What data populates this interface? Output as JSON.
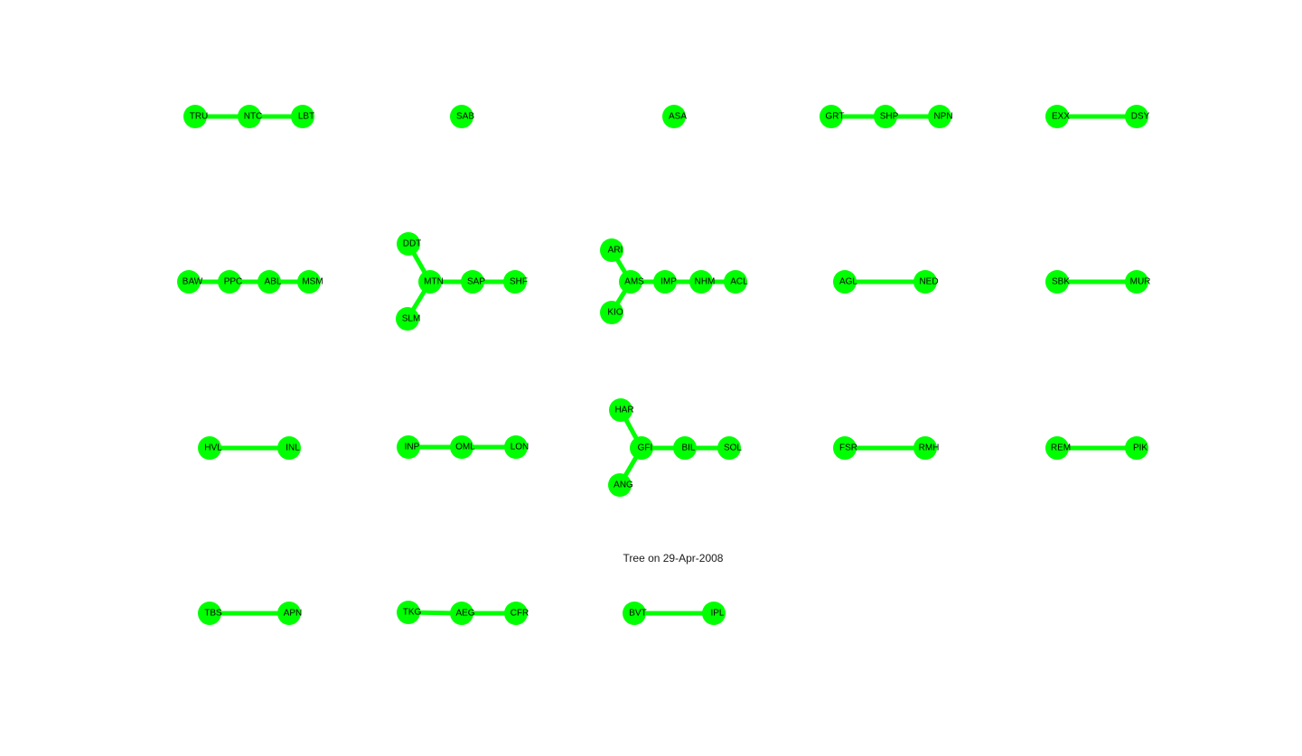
{
  "title": "Tree on 29-Apr-2008",
  "colors": {
    "node": "#00ff00",
    "edge": "#00ff00",
    "label": "#000000",
    "background": "#ffffff"
  },
  "trees": [
    {
      "id": "tree-1",
      "nodes": [
        "TRU",
        "NTC",
        "LBT"
      ],
      "edges": [
        [
          "TRU",
          "NTC"
        ],
        [
          "NTC",
          "LBT"
        ]
      ]
    },
    {
      "id": "tree-2",
      "nodes": [
        "SAB"
      ],
      "edges": []
    },
    {
      "id": "tree-3",
      "nodes": [
        "ASA"
      ],
      "edges": []
    },
    {
      "id": "tree-4",
      "nodes": [
        "GRT",
        "SHP",
        "NPN"
      ],
      "edges": [
        [
          "GRT",
          "SHP"
        ],
        [
          "SHP",
          "NPN"
        ]
      ]
    },
    {
      "id": "tree-5",
      "nodes": [
        "EXX",
        "DSY"
      ],
      "edges": [
        [
          "EXX",
          "DSY"
        ]
      ]
    },
    {
      "id": "tree-6",
      "nodes": [
        "BAW",
        "PPC",
        "ABL",
        "MSM"
      ],
      "edges": [
        [
          "BAW",
          "PPC"
        ],
        [
          "PPC",
          "ABL"
        ],
        [
          "ABL",
          "MSM"
        ]
      ]
    },
    {
      "id": "tree-7",
      "nodes": [
        "DDT",
        "MTN",
        "SAP",
        "SHF",
        "SLM"
      ],
      "edges": [
        [
          "DDT",
          "MTN"
        ],
        [
          "SLM",
          "MTN"
        ],
        [
          "MTN",
          "SAP"
        ],
        [
          "SAP",
          "SHF"
        ]
      ]
    },
    {
      "id": "tree-8",
      "nodes": [
        "ARI",
        "AMS",
        "IMP",
        "NHM",
        "ACL",
        "KIO"
      ],
      "edges": [
        [
          "ARI",
          "AMS"
        ],
        [
          "KIO",
          "AMS"
        ],
        [
          "AMS",
          "IMP"
        ],
        [
          "IMP",
          "NHM"
        ],
        [
          "NHM",
          "ACL"
        ]
      ]
    },
    {
      "id": "tree-9",
      "nodes": [
        "AGL",
        "NED"
      ],
      "edges": [
        [
          "AGL",
          "NED"
        ]
      ]
    },
    {
      "id": "tree-10",
      "nodes": [
        "SBK",
        "MUR"
      ],
      "edges": [
        [
          "SBK",
          "MUR"
        ]
      ]
    },
    {
      "id": "tree-11",
      "nodes": [
        "HVL",
        "INL"
      ],
      "edges": [
        [
          "HVL",
          "INL"
        ]
      ]
    },
    {
      "id": "tree-12",
      "nodes": [
        "INP",
        "OML",
        "LON"
      ],
      "edges": [
        [
          "INP",
          "OML"
        ],
        [
          "OML",
          "LON"
        ]
      ]
    },
    {
      "id": "tree-13",
      "nodes": [
        "HAR",
        "GFI",
        "BIL",
        "SOL",
        "ANG"
      ],
      "edges": [
        [
          "HAR",
          "GFI"
        ],
        [
          "ANG",
          "GFI"
        ],
        [
          "GFI",
          "BIL"
        ],
        [
          "BIL",
          "SOL"
        ]
      ]
    },
    {
      "id": "tree-14",
      "nodes": [
        "FSR",
        "RMH"
      ],
      "edges": [
        [
          "FSR",
          "RMH"
        ]
      ]
    },
    {
      "id": "tree-15",
      "nodes": [
        "REM",
        "PIK"
      ],
      "edges": [
        [
          "REM",
          "PIK"
        ]
      ]
    },
    {
      "id": "tree-16",
      "nodes": [
        "TBS",
        "APN"
      ],
      "edges": [
        [
          "TBS",
          "APN"
        ]
      ]
    },
    {
      "id": "tree-17",
      "nodes": [
        "TKG",
        "AEG",
        "CFR"
      ],
      "edges": [
        [
          "TKG",
          "AEG"
        ],
        [
          "AEG",
          "CFR"
        ]
      ]
    },
    {
      "id": "tree-18",
      "nodes": [
        "BVT",
        "IPL"
      ],
      "edges": [
        [
          "BVT",
          "IPL"
        ]
      ]
    }
  ]
}
